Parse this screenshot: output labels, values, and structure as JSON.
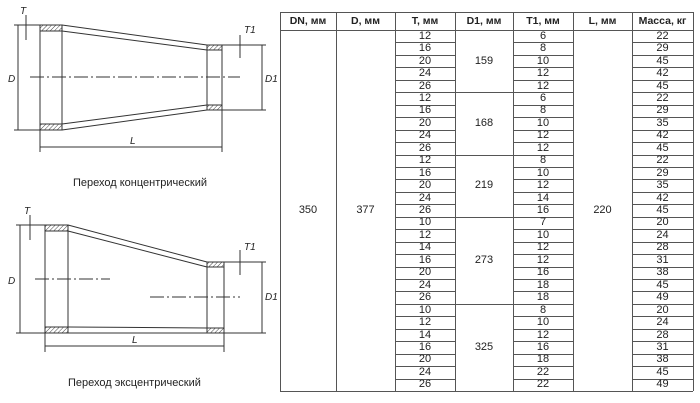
{
  "drawings": {
    "concentric": {
      "caption": "Переход концентрический",
      "labels": {
        "T": "T",
        "T1": "T1",
        "D": "D",
        "D1": "D1",
        "L": "L"
      }
    },
    "eccentric": {
      "caption": "Переход эксцентрический",
      "labels": {
        "T": "T",
        "T1": "T1",
        "D": "D",
        "D1": "D1",
        "L": "L"
      }
    }
  },
  "table": {
    "headers": [
      "DN, мм",
      "D, мм",
      "T, мм",
      "D1, мм",
      "T1, мм",
      "L, мм",
      "Масса, кг"
    ],
    "DN": "350",
    "D": "377",
    "L": "220",
    "groups": [
      {
        "D1": "159",
        "rows": [
          [
            "12",
            "6",
            "22"
          ],
          [
            "16",
            "8",
            "29"
          ],
          [
            "20",
            "10",
            "45"
          ],
          [
            "24",
            "12",
            "42"
          ],
          [
            "26",
            "12",
            "45"
          ]
        ]
      },
      {
        "D1": "168",
        "rows": [
          [
            "12",
            "6",
            "22"
          ],
          [
            "16",
            "8",
            "29"
          ],
          [
            "20",
            "10",
            "35"
          ],
          [
            "24",
            "12",
            "42"
          ],
          [
            "26",
            "12",
            "45"
          ]
        ]
      },
      {
        "D1": "219",
        "rows": [
          [
            "12",
            "8",
            "22"
          ],
          [
            "16",
            "10",
            "29"
          ],
          [
            "20",
            "12",
            "35"
          ],
          [
            "24",
            "14",
            "42"
          ],
          [
            "26",
            "16",
            "45"
          ]
        ]
      },
      {
        "D1": "273",
        "rows": [
          [
            "10",
            "7",
            "20"
          ],
          [
            "12",
            "10",
            "24"
          ],
          [
            "14",
            "12",
            "28"
          ],
          [
            "16",
            "12",
            "31"
          ],
          [
            "20",
            "16",
            "38"
          ],
          [
            "24",
            "18",
            "45"
          ],
          [
            "26",
            "18",
            "49"
          ]
        ]
      },
      {
        "D1": "325",
        "rows": [
          [
            "10",
            "8",
            "20"
          ],
          [
            "12",
            "10",
            "24"
          ],
          [
            "14",
            "12",
            "28"
          ],
          [
            "16",
            "16",
            "31"
          ],
          [
            "20",
            "18",
            "38"
          ],
          [
            "24",
            "22",
            "45"
          ],
          [
            "26",
            "22",
            "49"
          ]
        ]
      }
    ]
  }
}
